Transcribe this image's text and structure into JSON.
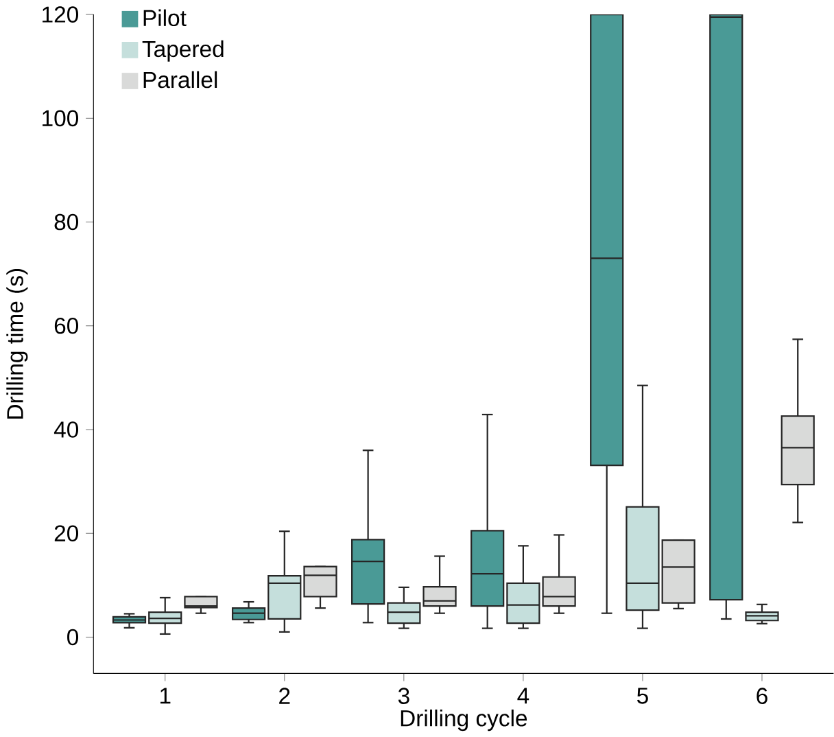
{
  "chart_data": {
    "type": "box",
    "xlabel": "Drilling cycle",
    "ylabel": "Drilling time (s)",
    "categories": [
      "1",
      "2",
      "3",
      "4",
      "5",
      "6"
    ],
    "ylim": [
      -7,
      120
    ],
    "yticks": [
      0,
      20,
      40,
      60,
      80,
      100,
      120
    ],
    "legend": "top left",
    "grid": false,
    "series": [
      {
        "name": "Pilot",
        "color": "#4a9a96",
        "boxes": [
          {
            "low": 1.8,
            "q1": 2.8,
            "median": 3.3,
            "q3": 3.9,
            "high": 4.5
          },
          {
            "low": 2.8,
            "q1": 3.4,
            "median": 4.6,
            "q3": 5.6,
            "high": 6.8
          },
          {
            "low": 2.8,
            "q1": 6.4,
            "median": 14.6,
            "q3": 18.8,
            "high": 36
          },
          {
            "low": 1.7,
            "q1": 6.0,
            "median": 12.2,
            "q3": 20.5,
            "high": 42.9
          },
          {
            "low": 4.6,
            "q1": 33.1,
            "median": 73,
            "q3": 120,
            "high": 120
          },
          {
            "low": 3.5,
            "q1": 7.2,
            "median": 119.5,
            "q3": 120,
            "high": 120
          }
        ]
      },
      {
        "name": "Tapered",
        "color": "#c5dfdc",
        "boxes": [
          {
            "low": 0.6,
            "q1": 2.7,
            "median": 3.6,
            "q3": 4.8,
            "high": 7.6
          },
          {
            "low": 1.0,
            "q1": 3.5,
            "median": 10.4,
            "q3": 11.8,
            "high": 20.4
          },
          {
            "low": 1.7,
            "q1": 2.7,
            "median": 4.8,
            "q3": 6.6,
            "high": 9.6
          },
          {
            "low": 1.7,
            "q1": 2.7,
            "median": 6.2,
            "q3": 10.4,
            "high": 17.6
          },
          {
            "low": 1.7,
            "q1": 5.2,
            "median": 10.4,
            "q3": 25.1,
            "high": 48.5
          },
          {
            "low": 2.6,
            "q1": 3.2,
            "median": 4.1,
            "q3": 4.8,
            "high": 6.3
          }
        ]
      },
      {
        "name": "Parallel",
        "color": "#d9dad9",
        "boxes": [
          {
            "low": 4.6,
            "q1": 5.7,
            "median": 6.0,
            "q3": 7.8,
            "high": 7.8
          },
          {
            "low": 5.6,
            "q1": 7.8,
            "median": 11.9,
            "q3": 13.6,
            "high": 13.6
          },
          {
            "low": 4.6,
            "q1": 6.0,
            "median": 7.0,
            "q3": 9.7,
            "high": 15.6
          },
          {
            "low": 4.6,
            "q1": 6.0,
            "median": 7.8,
            "q3": 11.6,
            "high": 19.7
          },
          {
            "low": 5.5,
            "q1": 6.6,
            "median": 13.5,
            "q3": 18.7,
            "high": 18.7
          },
          {
            "low": 22.1,
            "q1": 29.4,
            "median": 36.5,
            "q3": 42.6,
            "high": 57.4
          }
        ]
      }
    ]
  }
}
